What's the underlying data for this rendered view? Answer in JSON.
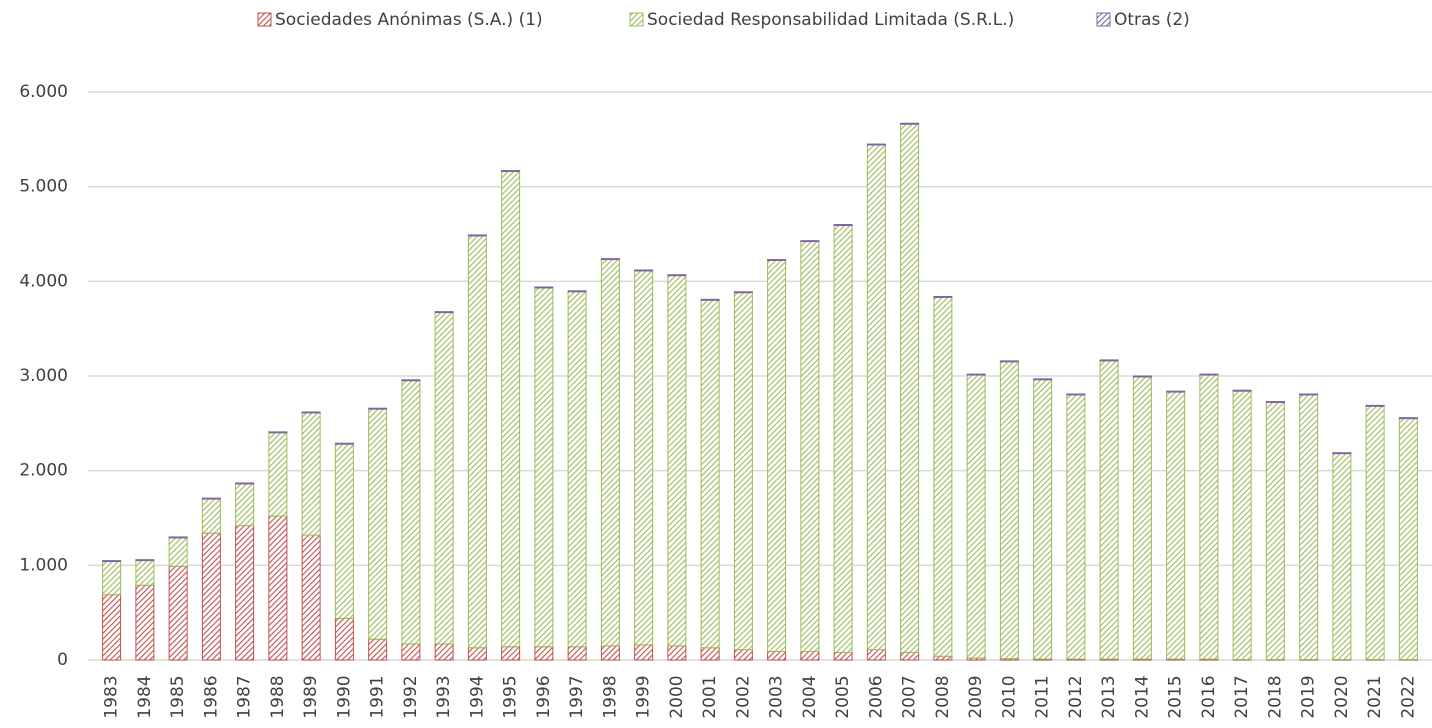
{
  "chart_data": {
    "type": "stacked-bar",
    "categories": [
      "1983",
      "1984",
      "1985",
      "1986",
      "1987",
      "1988",
      "1989",
      "1990",
      "1991",
      "1992",
      "1993",
      "1994",
      "1995",
      "1996",
      "1997",
      "1998",
      "1999",
      "2000",
      "2001",
      "2002",
      "2003",
      "2004",
      "2005",
      "2006",
      "2007",
      "2008",
      "2009",
      "2010",
      "2011",
      "2012",
      "2013",
      "2014",
      "2015",
      "2016",
      "2017",
      "2018",
      "2019",
      "2020",
      "2021",
      "2022"
    ],
    "series": [
      {
        "name": "Sociedades Anónimas (S.A.) (1)",
        "color": "#c0504d",
        "values": [
          690,
          790,
          990,
          1340,
          1420,
          1520,
          1320,
          440,
          220,
          170,
          170,
          130,
          140,
          140,
          140,
          150,
          160,
          150,
          130,
          110,
          90,
          90,
          80,
          110,
          80,
          40,
          20,
          15,
          10,
          10,
          10,
          10,
          10,
          10,
          5,
          5,
          5,
          5,
          5,
          5
        ]
      },
      {
        "name": "Sociedad Responsabilidad Limitada (S.R.L.)",
        "color": "#9bbb59",
        "values": [
          350,
          260,
          300,
          360,
          440,
          880,
          1290,
          1840,
          2430,
          2780,
          3500,
          4350,
          5020,
          3790,
          3750,
          4080,
          3950,
          3910,
          3670,
          3770,
          4130,
          4330,
          4510,
          5330,
          5580,
          3790,
          2990,
          3135,
          2950,
          2790,
          3150,
          2980,
          2820,
          3000,
          2835,
          2715,
          2795,
          2175,
          2675,
          2545
        ]
      },
      {
        "name": "Otras (2)",
        "color": "#8064a2",
        "values": [
          10,
          10,
          10,
          10,
          10,
          10,
          10,
          10,
          10,
          10,
          10,
          10,
          10,
          10,
          10,
          10,
          10,
          10,
          10,
          10,
          10,
          10,
          10,
          10,
          10,
          10,
          10,
          10,
          10,
          10,
          10,
          10,
          10,
          10,
          10,
          10,
          10,
          10,
          10,
          10
        ]
      }
    ],
    "ylim": [
      0,
      6000
    ],
    "yticks": [
      0,
      {
        "value": 1000,
        "label": "1.000"
      },
      {
        "value": 2000,
        "label": "2.000"
      },
      {
        "value": 3000,
        "label": "3.000"
      },
      {
        "value": 4000,
        "label": "4.000"
      },
      {
        "value": 5000,
        "label": "5.000"
      },
      {
        "value": 6000,
        "label": "6.000"
      }
    ],
    "grid": true,
    "legend": "top"
  }
}
